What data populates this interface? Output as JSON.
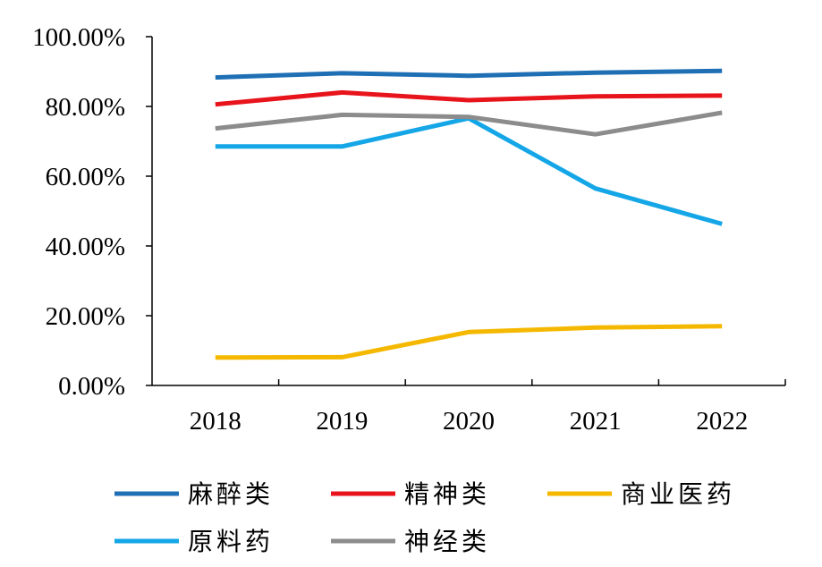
{
  "chart_data": {
    "type": "line",
    "categories": [
      "2018",
      "2019",
      "2020",
      "2021",
      "2022"
    ],
    "y_ticks": [
      "0.00%",
      "20.00%",
      "40.00%",
      "60.00%",
      "80.00%",
      "100.00%"
    ],
    "ylim": [
      0,
      100
    ],
    "grid": false,
    "legend_position": "bottom",
    "series": [
      {
        "name": "麻醉类",
        "color": "#1F6FB5",
        "values": [
          88.3,
          89.5,
          88.8,
          89.7,
          90.2
        ]
      },
      {
        "name": "精神类",
        "color": "#E8141B",
        "values": [
          80.6,
          84.0,
          81.8,
          82.9,
          83.1
        ]
      },
      {
        "name": "商业医药",
        "color": "#F5B800",
        "values": [
          8.0,
          8.1,
          15.3,
          16.6,
          17.0
        ]
      },
      {
        "name": "原料药",
        "color": "#14A6E6",
        "values": [
          68.5,
          68.5,
          76.6,
          56.5,
          46.3
        ]
      },
      {
        "name": "神经类",
        "color": "#8C8C8C",
        "values": [
          73.7,
          77.6,
          77.0,
          72.0,
          78.2
        ]
      }
    ]
  }
}
